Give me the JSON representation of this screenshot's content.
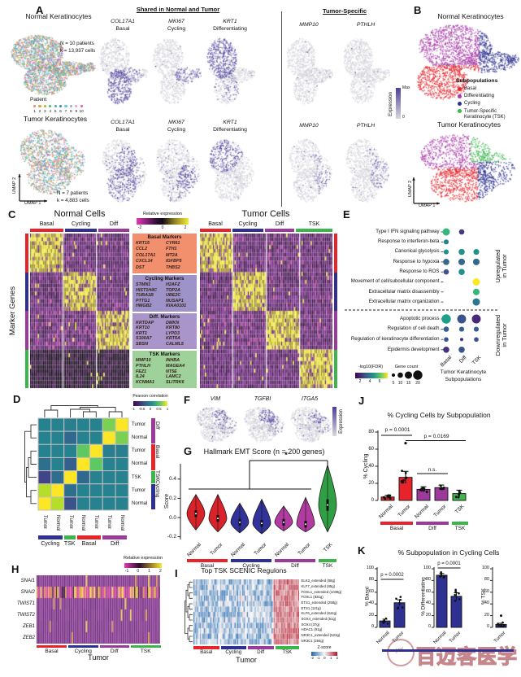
{
  "watermark": {
    "text": "百迈客医学",
    "logo_text": "yd"
  },
  "colors": {
    "basal": "#e8242b",
    "cycling": "#2e3192",
    "diff": "#9b3a9b",
    "tsk": "#3cb54b"
  },
  "panels": {
    "a": {
      "label": "A",
      "normal_title": "Normal Keratinocytes",
      "normal_n": "N = 10 patients",
      "normal_k": "k = 13,937 cells",
      "patient_legend_title": "Patient",
      "patients": [
        "1",
        "2",
        "3",
        "4",
        "5",
        "6",
        "7",
        "8",
        "9",
        "10"
      ],
      "patient_colors": [
        "#f08a6a",
        "#e8a23c",
        "#b8b03a",
        "#4cb87a",
        "#35b6b0",
        "#3a86c8",
        "#62c8e8",
        "#9aaede",
        "#f0a0c8",
        "#e060b0"
      ],
      "tumor_title": "Tumor Keratinocytes",
      "tumor_n": "N = 7 patients",
      "tumor_k": "k = 4,883 cells",
      "shared_header": "Shared in Normal and Tumor",
      "tumor_specific_header": "Tumor-Specific",
      "shared_features": [
        {
          "gene": "COL17A1",
          "subpop": "Basal"
        },
        {
          "gene": "MKI67",
          "subpop": "Cycling"
        },
        {
          "gene": "KRT1",
          "subpop": "Differentiating"
        }
      ],
      "tumor_specific_features": [
        "MMP10",
        "PTHLH"
      ],
      "expression_label": "Expression",
      "expr_max": "Max",
      "expr_min": "0",
      "umap_x": "UMAP 1",
      "umap_y": "UMAP 2"
    },
    "b": {
      "label": "B",
      "normal_title": "Normal Keratinocytes",
      "tumor_title": "Tumor Keratinocytes",
      "legend_title": "Subpopulations",
      "legend": [
        {
          "label": "Basal",
          "label2": "",
          "color": "#e8242b"
        },
        {
          "label": "Differentiating",
          "label2": "",
          "color": "#a93aa9"
        },
        {
          "label": "Cycling",
          "label2": "",
          "color": "#2e3192"
        },
        {
          "label": "Tumor-Specific",
          "label2": "Keratinocyte (TSK)",
          "color": "#3cb54b"
        }
      ],
      "umap_x": "UMAP 1",
      "umap_y": "UMAP 2"
    },
    "c": {
      "label": "C",
      "ylabel": "Marker Genes",
      "normal_title": "Normal Cells",
      "tumor_title": "Tumor Cells",
      "normal_columns": [
        "Basal",
        "Cycling",
        "Diff"
      ],
      "tumor_columns": [
        "Basal",
        "Cycling",
        "Diff",
        "TSK"
      ],
      "colorbar_label": "Relative expression",
      "colorbar_ticks": [
        "-2",
        "0",
        "2"
      ],
      "marker_boxes": [
        {
          "title": "Basal Markers",
          "bg": "#f2906e",
          "genes": [
            "KRT15",
            "CYR61",
            "CCL2",
            "FTH1",
            "COL17A1",
            "MT2A",
            "CXCL14",
            "IGFBP5",
            "DST",
            "THBS2"
          ]
        },
        {
          "title": "Cycling Markers",
          "bg": "#9d93c8",
          "genes": [
            "STMN1",
            "H2AFZ",
            "HIST1H4C",
            "TOP2A",
            "TUBA1B",
            "UBE2C",
            "PTTG1",
            "NUSAP1",
            "HMGB2",
            "KIAA0101"
          ]
        },
        {
          "title": "Diff. Markers",
          "bg": "#a995c9",
          "genes": [
            "KRTDAP",
            "DMKN",
            "KRT10",
            "KRT80",
            "KRT1",
            "LYPD3",
            "S100A7",
            "KRT6A",
            "SBSN",
            "CALML5"
          ]
        },
        {
          "title": "TSK Markers",
          "bg": "#9fd29a",
          "genes": [
            "MMP10",
            "INHBA",
            "PTHLH",
            "MAGEA4",
            "FEZ1",
            "NT5E",
            "IL24",
            "LAMC2",
            "KCNMA1",
            "SLITRK6"
          ]
        }
      ]
    },
    "d": {
      "label": "D"
    },
    "e": {
      "label": "E"
    },
    "f": {
      "label": "F",
      "genes": [
        "VIM",
        "TGFBI",
        "ITGA5"
      ],
      "expression_label": "Expression"
    },
    "g": {
      "label": "G"
    },
    "h": {
      "label": "H"
    },
    "i": {
      "label": "I"
    },
    "j": {
      "label": "J"
    },
    "k": {
      "label": "K"
    }
  },
  "chart_data": [
    {
      "panel": "D",
      "type": "heatmap",
      "legend_label": "Pearson correlation",
      "legend_ticks": [
        "-1",
        "-0.5",
        "0",
        "0.5",
        "1"
      ],
      "row_labels": [
        "Tumor",
        "Normal",
        "Tumor",
        "Normal",
        "TSK",
        "Tumor",
        "Normal"
      ],
      "col_labels": [
        "Tumor",
        "Normal",
        "Tumor",
        "Normal",
        "Tumor",
        "Tumor",
        "Normal"
      ],
      "row_groups": [
        {
          "label": "Diff",
          "span": 2,
          "color": "#9b3a9b"
        },
        {
          "label": "Basal",
          "span": 2,
          "color": "#e8242b"
        },
        {
          "label": "TSK",
          "span": 1,
          "color": "#3cb54b"
        },
        {
          "label": "Cycling",
          "span": 2,
          "color": "#2e3192"
        }
      ],
      "col_groups": [
        {
          "label": "Cycling",
          "span": 2,
          "color": "#2e3192"
        },
        {
          "label": "TSK",
          "span": 1,
          "color": "#3cb54b"
        },
        {
          "label": "Basal",
          "span": 2,
          "color": "#e8242b"
        },
        {
          "label": "Diff",
          "span": 2,
          "color": "#9b3a9b"
        }
      ],
      "cell_colors": [
        [
          "#26828e",
          "#26828e",
          "#2a7f8e",
          "#26828e",
          "#26828e",
          "#7ad151",
          "#fde725"
        ],
        [
          "#26828e",
          "#26828e",
          "#31688e",
          "#26828e",
          "#26828e",
          "#fde725",
          "#7ad151"
        ],
        [
          "#26828e",
          "#26828e",
          "#26828e",
          "#5ec962",
          "#fde725",
          "#2a7f8e",
          "#2a7f8e"
        ],
        [
          "#2e6f8e",
          "#26828e",
          "#355f8d",
          "#fde725",
          "#5ec962",
          "#26828e",
          "#26828e"
        ],
        [
          "#414487",
          "#2e6f8e",
          "#fde725",
          "#31688e",
          "#26828e",
          "#26828e",
          "#26828e"
        ],
        [
          "#b5de2b",
          "#fde725",
          "#2e6f8e",
          "#26828e",
          "#26828e",
          "#26828e",
          "#26828e"
        ],
        [
          "#fde725",
          "#b5de2b",
          "#3b528b",
          "#26828e",
          "#26828e",
          "#26828e",
          "#26828e"
        ]
      ]
    },
    {
      "panel": "E",
      "type": "dotplot",
      "columns": [
        "Basal",
        "Diff",
        "TSK"
      ],
      "xlabel": [
        "Tumor Keratinocyte",
        "Subpopulations"
      ],
      "up_label": [
        "Upregulated",
        "in Tumor"
      ],
      "down_label": [
        "Downregulated",
        "in Tumor"
      ],
      "legend": {
        "fdr_label": "-log10(FDR)",
        "fdr_ticks": [
          "2",
          "4",
          "6"
        ],
        "count_label": "Gene count",
        "count_sizes": [
          "5",
          "10",
          "15",
          "20"
        ]
      },
      "split_after": 8,
      "rows": [
        {
          "pathway": "Type I IFN signaling pathway",
          "dots": [
            {
              "gc": 15,
              "color": "#35b779"
            },
            {
              "gc": 10,
              "color": "#443983"
            },
            null
          ]
        },
        {
          "pathway": "Response to interferon-beta",
          "dots": [
            {
              "gc": 9,
              "color": "#26828e"
            },
            null,
            null
          ]
        },
        {
          "pathway": "Canonical glycolysis",
          "dots": [
            {
              "gc": 9,
              "color": "#21918c"
            },
            {
              "gc": 12,
              "color": "#21918c"
            },
            {
              "gc": 11,
              "color": "#21918c"
            }
          ]
        },
        {
          "pathway": "Response to hypoxia",
          "dots": [
            {
              "gc": 12,
              "color": "#31688e"
            },
            {
              "gc": 13,
              "color": "#31688e"
            },
            {
              "gc": 13,
              "color": "#31688e"
            }
          ]
        },
        {
          "pathway": "Response to ROS",
          "dots": [
            {
              "gc": 10,
              "color": "#3b528b"
            },
            {
              "gc": 12,
              "color": "#21918c"
            },
            null
          ]
        },
        {
          "pathway": "Movement of cell/subcellular component",
          "dots": [
            null,
            null,
            {
              "gc": 15,
              "color": "#fde725"
            }
          ]
        },
        {
          "pathway": "Extracellular matrix disassembly",
          "dots": [
            null,
            null,
            {
              "gc": 13,
              "color": "#35b779"
            }
          ]
        },
        {
          "pathway": "Extracellular matrix organization",
          "dots": [
            null,
            null,
            {
              "gc": 15,
              "color": "#2a788e"
            }
          ]
        },
        {
          "pathway": "Apoptotic process",
          "dots": [
            {
              "gc": 20,
              "color": "#1f9e89"
            },
            {
              "gc": 19,
              "color": "#3b528b"
            },
            {
              "gc": 19,
              "color": "#482878"
            }
          ]
        },
        {
          "pathway": "Regulation of cell death",
          "dots": [
            {
              "gc": 10,
              "color": "#355f8d"
            },
            {
              "gc": 9,
              "color": "#355f8d"
            },
            {
              "gc": 9,
              "color": "#355f8d"
            }
          ]
        },
        {
          "pathway": "Regulation of keratinocyte differentiation",
          "dots": [
            {
              "gc": 8,
              "color": "#3b528b"
            },
            {
              "gc": 5,
              "color": "#443983"
            },
            {
              "gc": 8,
              "color": "#3b528b"
            }
          ]
        },
        {
          "pathway": "Epidermis development",
          "dots": [
            {
              "gc": 12,
              "color": "#46327e"
            },
            {
              "gc": 12,
              "color": "#3b528b"
            },
            null
          ]
        }
      ]
    },
    {
      "panel": "G",
      "type": "violin",
      "title": "Hallmark EMT Score (n = 200 genes)",
      "ylabel": "Score",
      "yticks": [
        "0.4",
        "0.2",
        "0.0",
        "-0.2"
      ],
      "ylim": [
        -0.2,
        0.55
      ],
      "categories": [
        "Normal",
        "Tumor",
        "Normal",
        "Tumor",
        "Normal",
        "Tumor",
        "TSK"
      ],
      "groups": [
        {
          "label": "Basal",
          "color": "#e8242b"
        },
        {
          "label": "Cycling",
          "color": "#2e3192"
        },
        {
          "label": "Diff",
          "color": "#9b3a9b"
        },
        {
          "label": "TSK",
          "color": "#3cb54b"
        }
      ],
      "sig_star": "*",
      "violins": [
        {
          "median": 0.04,
          "max": 0.24,
          "min": -0.13,
          "color": "#d8232a"
        },
        {
          "median": -0.01,
          "max": 0.24,
          "min": -0.15,
          "color": "#d8232a"
        },
        {
          "median": -0.05,
          "max": 0.15,
          "min": -0.16,
          "color": "#31339a"
        },
        {
          "median": -0.06,
          "max": 0.19,
          "min": -0.17,
          "color": "#31339a"
        },
        {
          "median": -0.05,
          "max": 0.12,
          "min": -0.14,
          "color": "#b13ba0"
        },
        {
          "median": -0.07,
          "max": 0.21,
          "min": -0.15,
          "color": "#b13ba0"
        },
        {
          "median": 0.13,
          "max": 0.55,
          "min": -0.15,
          "color": "#2f9e44"
        }
      ]
    },
    {
      "panel": "J",
      "type": "bar",
      "title": "% Cycling Cells by Subpopulation",
      "ylabel": "% Cycling",
      "ylim": [
        0,
        80
      ],
      "yticks": [
        "0",
        "20",
        "40",
        "60",
        "80"
      ],
      "categories": [
        "Normal",
        "Tumor",
        "Normal",
        "Tumor",
        "TSK"
      ],
      "values": [
        4,
        27,
        13,
        15,
        8
      ],
      "errors": [
        2,
        7,
        3,
        3,
        4
      ],
      "colors": [
        "#e8242b",
        "#e8242b",
        "#9b3a9b",
        "#9b3a9b",
        "#3cb54b"
      ],
      "outliers": [
        {
          "bar": 1,
          "value": 67
        }
      ],
      "annotations": [
        {
          "text": "p = 0.0001"
        },
        {
          "text": "p = 0.0169"
        },
        {
          "text": "n.s."
        }
      ],
      "groups": [
        {
          "label": "Basal",
          "color": "#e8242b"
        },
        {
          "label": "Diff",
          "color": "#9b3a9b"
        },
        {
          "label": "TSK",
          "color": "#3cb54b"
        }
      ]
    },
    {
      "panel": "K",
      "type": "bar-multi",
      "title": "% Subpopulation in Cycling Cells",
      "ylim": [
        0,
        100
      ],
      "yticks": [
        "0",
        "20",
        "40",
        "60",
        "80",
        "100"
      ],
      "bar_color": "#2e3192",
      "subplots": [
        {
          "ylabel": "% Basal",
          "categories": [
            "Normal",
            "Tumor"
          ],
          "values": [
            11,
            42
          ],
          "errors": [
            3,
            5
          ],
          "p": "p = 0.0002"
        },
        {
          "ylabel": "% Differentiating",
          "categories": [
            "Normal",
            "Tumor"
          ],
          "values": [
            89,
            53
          ],
          "errors": [
            3,
            6
          ],
          "p": "p = 0.0001"
        },
        {
          "ylabel": "% TSK",
          "categories": [
            "Tumor"
          ],
          "values": [
            5
          ],
          "errors": [
            2
          ],
          "p": "",
          "outliers": [
            {
              "bar": 0,
              "value": 20
            }
          ]
        }
      ]
    },
    {
      "panel": "H",
      "type": "heatmap",
      "genes": [
        "SNAI1",
        "SNAI2",
        "TWIST1",
        "TWIST2",
        "ZEB1",
        "ZEB2"
      ],
      "columns": [
        "Basal",
        "Cycling",
        "Diff",
        "TSK"
      ],
      "xlabel": "Tumor",
      "colorbar_label": "Relative expression",
      "colorbar_ticks": [
        "-1",
        "0",
        "1",
        "2"
      ]
    },
    {
      "panel": "I",
      "type": "heatmap",
      "title": "Top TSK SCENIC Regulons",
      "columns": [
        "Basal",
        "Cycling",
        "Diff",
        "TSK"
      ],
      "xlabel": "Tumor",
      "colorbar_label": "Z-score",
      "colorbar_ticks": [
        "-2",
        "-1",
        "0",
        "1",
        "2"
      ],
      "regulons": [
        "ELK3_extended (88g)",
        "KLF7_extended (85g)",
        "FOSL1_extended (1038g)",
        "FOSL1 (831g)",
        "ETS1_extended (258g)",
        "ETS1 (121g)",
        "KLF6_extended (844g)",
        "SOX4_extended (51g)",
        "SOX4 (37g)",
        "HDAC1 (91g)",
        "NR3C1_extended (523g)",
        "NR3C1 (294g)"
      ]
    },
    {
      "panel": "C",
      "type": "heatmap",
      "normal_columns": [
        "Basal",
        "Cycling",
        "Diff"
      ],
      "tumor_columns": [
        "Basal",
        "Cycling",
        "Diff",
        "TSK"
      ],
      "row_groups": [
        "Basal Markers",
        "Cycling Markers",
        "Diff. Markers",
        "TSK Markers"
      ]
    }
  ]
}
